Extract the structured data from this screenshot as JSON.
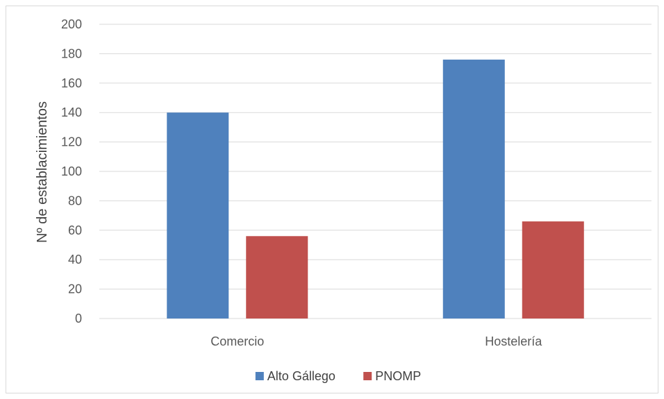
{
  "chart_data": {
    "type": "bar",
    "categories": [
      "Comercio",
      "Hostelería"
    ],
    "series": [
      {
        "name": "Alto Gállego",
        "values": [
          140,
          176
        ],
        "color": "#4f81bd"
      },
      {
        "name": "PNOMP",
        "values": [
          56,
          66
        ],
        "color": "#c0504d"
      }
    ],
    "title": "",
    "xlabel": "",
    "ylabel": "Nº de establacimientos",
    "ylim": [
      0,
      200
    ],
    "yticks": [
      0,
      20,
      40,
      60,
      80,
      100,
      120,
      140,
      160,
      180,
      200
    ],
    "grid": true,
    "legend_position": "bottom"
  }
}
